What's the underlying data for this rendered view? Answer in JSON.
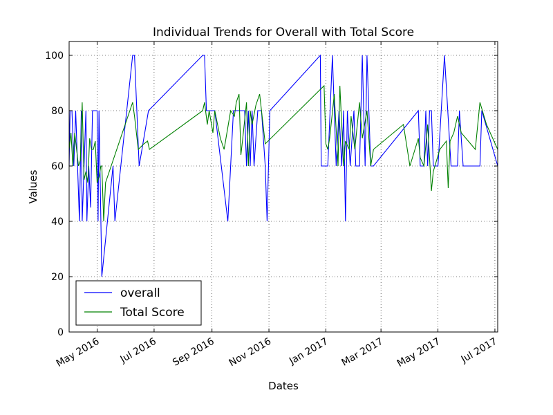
{
  "chart_data": {
    "type": "line",
    "title": "Individual Trends for Overall with Total Score",
    "xlabel": "Dates",
    "ylabel": "Values",
    "ylim": [
      0,
      105
    ],
    "xlim": [
      "2016-04-01",
      "2017-07-04"
    ],
    "grid": true,
    "legend_position": "lower-left",
    "yticks": [
      0,
      20,
      40,
      60,
      80,
      100
    ],
    "xticks": [
      {
        "date": "2016-05-01",
        "label": "May 2016"
      },
      {
        "date": "2016-07-01",
        "label": "Jul 2016"
      },
      {
        "date": "2016-09-01",
        "label": "Sep 2016"
      },
      {
        "date": "2016-11-01",
        "label": "Nov 2016"
      },
      {
        "date": "2017-01-01",
        "label": "Jan 2017"
      },
      {
        "date": "2017-03-01",
        "label": "Mar 2017"
      },
      {
        "date": "2017-05-01",
        "label": "May 2017"
      },
      {
        "date": "2017-07-01",
        "label": "Jul 2017"
      }
    ],
    "series": [
      {
        "name": "overall",
        "color": "#0000ff",
        "points": [
          [
            "2016-04-01",
            60
          ],
          [
            "2016-04-02",
            80
          ],
          [
            "2016-04-04",
            80
          ],
          [
            "2016-04-06",
            60
          ],
          [
            "2016-04-08",
            80
          ],
          [
            "2016-04-10",
            60
          ],
          [
            "2016-04-12",
            40
          ],
          [
            "2016-04-14",
            80
          ],
          [
            "2016-04-15",
            40
          ],
          [
            "2016-04-17",
            60
          ],
          [
            "2016-04-19",
            80
          ],
          [
            "2016-04-20",
            40
          ],
          [
            "2016-04-22",
            60
          ],
          [
            "2016-04-24",
            45
          ],
          [
            "2016-04-26",
            80
          ],
          [
            "2016-04-29",
            80
          ],
          [
            "2016-05-01",
            80
          ],
          [
            "2016-05-02",
            40
          ],
          [
            "2016-05-03",
            80
          ],
          [
            "2016-05-04",
            60
          ],
          [
            "2016-05-06",
            20
          ],
          [
            "2016-05-18",
            60
          ],
          [
            "2016-05-20",
            40
          ],
          [
            "2016-06-08",
            100
          ],
          [
            "2016-06-10",
            100
          ],
          [
            "2016-06-15",
            60
          ],
          [
            "2016-06-25",
            80
          ],
          [
            "2016-08-22",
            100
          ],
          [
            "2016-08-24",
            100
          ],
          [
            "2016-08-26",
            80
          ],
          [
            "2016-09-04",
            80
          ],
          [
            "2016-09-18",
            40
          ],
          [
            "2016-09-24",
            80
          ],
          [
            "2016-10-06",
            80
          ],
          [
            "2016-10-08",
            60
          ],
          [
            "2016-10-10",
            80
          ],
          [
            "2016-10-12",
            60
          ],
          [
            "2016-10-14",
            80
          ],
          [
            "2016-10-16",
            60
          ],
          [
            "2016-10-20",
            80
          ],
          [
            "2016-10-24",
            80
          ],
          [
            "2016-10-28",
            60
          ],
          [
            "2016-10-30",
            40
          ],
          [
            "2016-11-02",
            80
          ],
          [
            "2016-12-26",
            100
          ],
          [
            "2016-12-27",
            60
          ],
          [
            "2017-01-03",
            60
          ],
          [
            "2017-01-08",
            100
          ],
          [
            "2017-01-12",
            60
          ],
          [
            "2017-01-15",
            80
          ],
          [
            "2017-01-18",
            60
          ],
          [
            "2017-01-20",
            80
          ],
          [
            "2017-01-22",
            40
          ],
          [
            "2017-01-24",
            80
          ],
          [
            "2017-01-27",
            60
          ],
          [
            "2017-01-31",
            80
          ],
          [
            "2017-02-02",
            60
          ],
          [
            "2017-02-06",
            60
          ],
          [
            "2017-02-09",
            100
          ],
          [
            "2017-02-12",
            60
          ],
          [
            "2017-02-14",
            100
          ],
          [
            "2017-02-18",
            60
          ],
          [
            "2017-02-21",
            60
          ],
          [
            "2017-04-10",
            80
          ],
          [
            "2017-04-12",
            60
          ],
          [
            "2017-04-14",
            60
          ],
          [
            "2017-04-16",
            60
          ],
          [
            "2017-04-18",
            80
          ],
          [
            "2017-04-20",
            60
          ],
          [
            "2017-04-22",
            80
          ],
          [
            "2017-04-24",
            80
          ],
          [
            "2017-04-26",
            60
          ],
          [
            "2017-05-01",
            60
          ],
          [
            "2017-05-08",
            100
          ],
          [
            "2017-05-15",
            60
          ],
          [
            "2017-05-22",
            60
          ],
          [
            "2017-05-24",
            80
          ],
          [
            "2017-05-28",
            60
          ],
          [
            "2017-06-15",
            60
          ],
          [
            "2017-06-17",
            80
          ],
          [
            "2017-07-04",
            60
          ]
        ]
      },
      {
        "name": "Total Score",
        "color": "#008000",
        "points": [
          [
            "2016-04-01",
            66
          ],
          [
            "2016-04-03",
            72
          ],
          [
            "2016-04-05",
            60
          ],
          [
            "2016-04-07",
            72
          ],
          [
            "2016-04-09",
            66
          ],
          [
            "2016-04-11",
            60
          ],
          [
            "2016-04-13",
            62
          ],
          [
            "2016-04-15",
            83
          ],
          [
            "2016-04-17",
            55
          ],
          [
            "2016-04-19",
            58
          ],
          [
            "2016-04-21",
            54
          ],
          [
            "2016-04-23",
            70
          ],
          [
            "2016-04-25",
            66
          ],
          [
            "2016-04-27",
            66
          ],
          [
            "2016-04-29",
            69
          ],
          [
            "2016-05-01",
            54
          ],
          [
            "2016-05-03",
            56
          ],
          [
            "2016-05-05",
            60
          ],
          [
            "2016-05-06",
            60
          ],
          [
            "2016-05-08",
            40
          ],
          [
            "2016-05-10",
            54
          ],
          [
            "2016-06-08",
            83
          ],
          [
            "2016-06-10",
            78
          ],
          [
            "2016-06-14",
            66
          ],
          [
            "2016-06-20",
            68
          ],
          [
            "2016-06-24",
            69
          ],
          [
            "2016-06-26",
            66
          ],
          [
            "2016-08-22",
            80
          ],
          [
            "2016-08-24",
            83
          ],
          [
            "2016-08-27",
            75
          ],
          [
            "2016-08-29",
            80
          ],
          [
            "2016-09-02",
            72
          ],
          [
            "2016-09-04",
            80
          ],
          [
            "2016-09-10",
            70
          ],
          [
            "2016-09-14",
            66
          ],
          [
            "2016-09-21",
            80
          ],
          [
            "2016-09-25",
            78
          ],
          [
            "2016-09-27",
            83
          ],
          [
            "2016-09-30",
            86
          ],
          [
            "2016-10-02",
            64
          ],
          [
            "2016-10-04",
            70
          ],
          [
            "2016-10-08",
            83
          ],
          [
            "2016-10-10",
            60
          ],
          [
            "2016-10-12",
            80
          ],
          [
            "2016-10-14",
            75
          ],
          [
            "2016-10-18",
            82
          ],
          [
            "2016-10-22",
            86
          ],
          [
            "2016-10-28",
            68
          ],
          [
            "2016-12-30",
            89
          ],
          [
            "2017-01-01",
            68
          ],
          [
            "2017-01-03",
            66
          ],
          [
            "2017-01-05",
            70
          ],
          [
            "2017-01-10",
            86
          ],
          [
            "2017-01-14",
            60
          ],
          [
            "2017-01-16",
            89
          ],
          [
            "2017-01-20",
            60
          ],
          [
            "2017-01-22",
            69
          ],
          [
            "2017-01-26",
            66
          ],
          [
            "2017-01-28",
            78
          ],
          [
            "2017-02-01",
            66
          ],
          [
            "2017-02-06",
            83
          ],
          [
            "2017-02-09",
            70
          ],
          [
            "2017-02-14",
            80
          ],
          [
            "2017-02-18",
            60
          ],
          [
            "2017-02-21",
            66
          ],
          [
            "2017-03-25",
            75
          ],
          [
            "2017-04-01",
            60
          ],
          [
            "2017-04-10",
            70
          ],
          [
            "2017-04-12",
            63
          ],
          [
            "2017-04-16",
            60
          ],
          [
            "2017-04-20",
            75
          ],
          [
            "2017-04-24",
            51
          ],
          [
            "2017-04-26",
            58
          ],
          [
            "2017-05-03",
            66
          ],
          [
            "2017-05-10",
            69
          ],
          [
            "2017-05-12",
            52
          ],
          [
            "2017-05-14",
            69
          ],
          [
            "2017-05-18",
            72
          ],
          [
            "2017-05-22",
            78
          ],
          [
            "2017-05-26",
            72
          ],
          [
            "2017-06-10",
            66
          ],
          [
            "2017-06-15",
            83
          ],
          [
            "2017-06-22",
            75
          ],
          [
            "2017-07-04",
            66
          ]
        ]
      }
    ]
  }
}
